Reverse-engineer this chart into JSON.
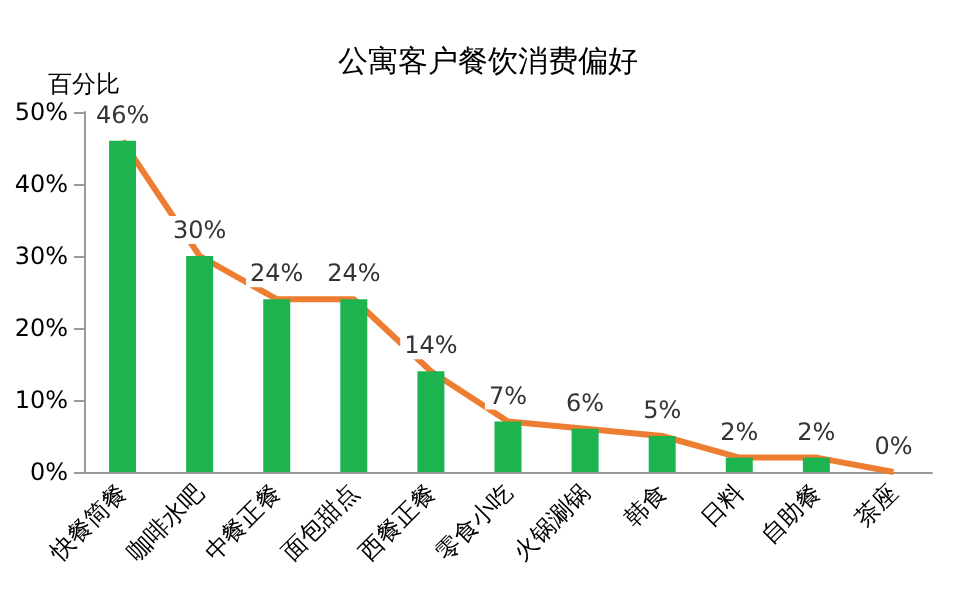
{
  "chart_data": {
    "type": "bar",
    "title": "公寓客户餐饮消费偏好",
    "ylabel": "百分比",
    "categories": [
      "快餐简餐",
      "咖啡水吧",
      "中餐正餐",
      "面包甜点",
      "西餐正餐",
      "零食小吃",
      "火锅涮锅",
      "韩食",
      "日料",
      "自助餐",
      "茶座"
    ],
    "series": [
      {
        "color": "#1db34f",
        "values": [
          46,
          30,
          24,
          24,
          14,
          7,
          6,
          5,
          2,
          2,
          0
        ],
        "value_labels": [
          "46%",
          "30%",
          "24%",
          "24%",
          "14%",
          "7%",
          "6%",
          "5%",
          "2%",
          "2%",
          "0%"
        ]
      },
      {
        "type": "line",
        "color": "#ed7d31",
        "values": [
          46,
          30,
          24,
          24,
          14,
          7,
          6,
          5,
          2,
          2,
          0
        ],
        "marker": "none"
      }
    ],
    "ylim": [
      0,
      50
    ],
    "yticks": [
      {
        "value": 0,
        "label": "0%"
      },
      {
        "value": 10,
        "label": "10%"
      },
      {
        "value": 20,
        "label": "20%"
      },
      {
        "value": 30,
        "label": "30%"
      },
      {
        "value": 40,
        "label": "40%"
      },
      {
        "value": 50,
        "label": "50%"
      }
    ],
    "grid": false
  }
}
